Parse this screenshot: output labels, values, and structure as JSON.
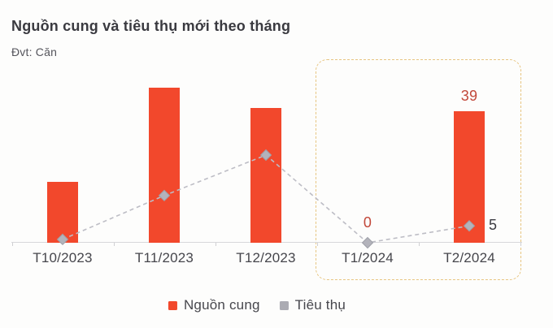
{
  "header": {
    "title": "Nguồn cung và tiêu thụ mới theo tháng",
    "unit_label": "Đvt: Căn"
  },
  "chart_data": {
    "type": "bar",
    "subtype": "bar-line-combo",
    "title": "Nguồn cung và tiêu thụ mới theo tháng",
    "unit": "Căn",
    "categories": [
      "T10/2023",
      "T11/2023",
      "T12/2023",
      "T1/2024",
      "T2/2024"
    ],
    "series": [
      {
        "name": "Nguồn cung",
        "type": "bar",
        "color": "#F2482C",
        "values": [
          18,
          46,
          40,
          0,
          39
        ],
        "data_labels": {
          "3": "0",
          "4": "39"
        },
        "label_color": "#C2483A"
      },
      {
        "name": "Tiêu thụ",
        "type": "line",
        "line_style": "dashed",
        "color": "#BDBDC5",
        "marker": "diamond",
        "marker_color": "#B3B3BB",
        "marker_border": "#9EA0A8",
        "values": [
          1,
          14,
          26,
          0,
          5
        ],
        "data_labels": {
          "4": "5"
        },
        "label_color": "#3B3B41"
      }
    ],
    "ylim": [
      0,
      50
    ],
    "yaxis_visible": false,
    "grid": false,
    "legend_position": "bottom",
    "highlight_region": {
      "categories": [
        "T1/2024",
        "T2/2024"
      ],
      "border_color": "#E7C581",
      "border_style": "dashed"
    }
  },
  "legend": {
    "items": [
      {
        "label": "Nguồn cung",
        "color": "#F2482C"
      },
      {
        "label": "Tiêu thụ",
        "color": "#ABABB3"
      }
    ]
  }
}
